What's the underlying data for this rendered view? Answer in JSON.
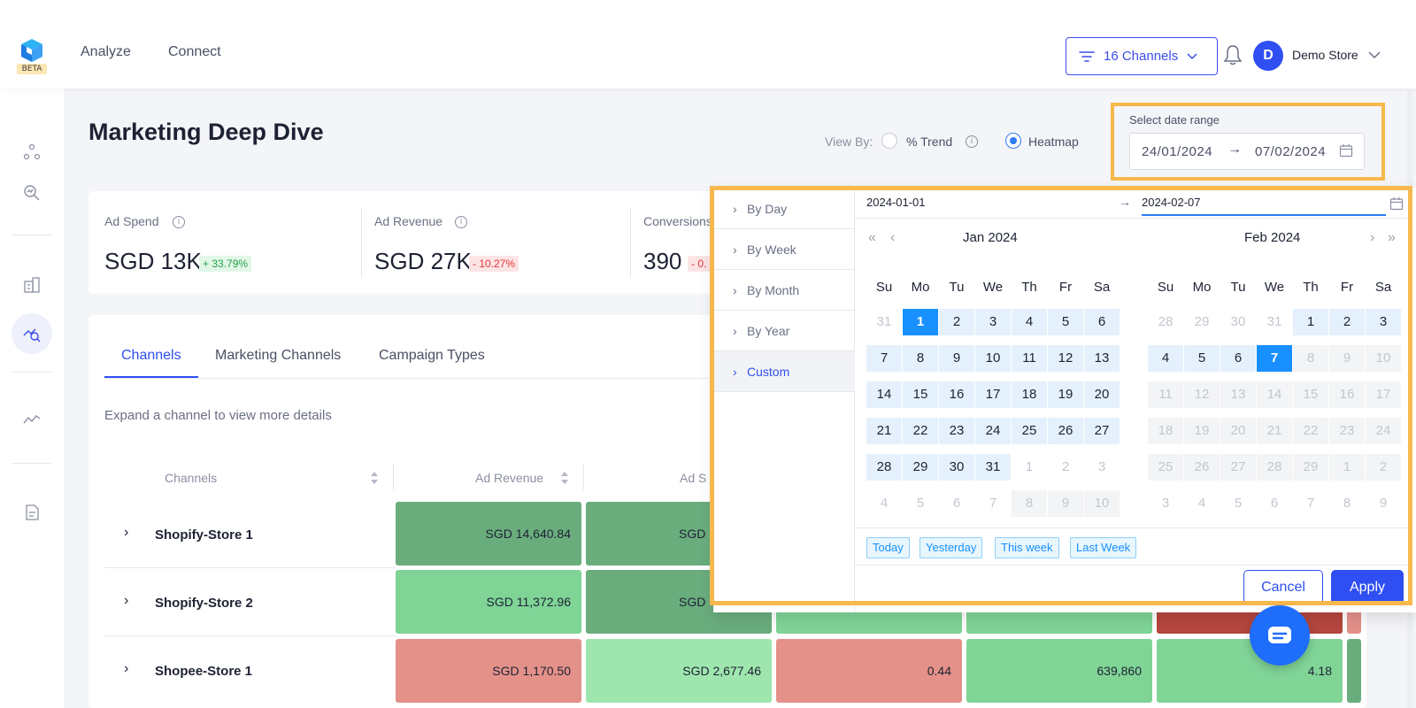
{
  "nav": {
    "logo_badge": "BETA",
    "items": [
      {
        "label": "Analyze"
      },
      {
        "label": "Connect"
      }
    ],
    "channels_filter": "16 Channels",
    "avatar_initial": "D",
    "store_name": "Demo Store"
  },
  "page": {
    "title": "Marketing Deep Dive",
    "view_by_label": "View By:",
    "view_options": [
      {
        "label": "% Trend",
        "selected": false
      },
      {
        "label": "Heatmap",
        "selected": true
      }
    ],
    "date_range": {
      "label": "Select date range",
      "start": "24/01/2024",
      "arrow": "→",
      "end": "07/02/2024"
    }
  },
  "kpis": [
    {
      "label": "Ad Spend",
      "value": "SGD 13K",
      "change": "+ 33.79%",
      "direction": "up"
    },
    {
      "label": "Ad Revenue",
      "value": "SGD 27K",
      "change": "- 10.27%",
      "direction": "down"
    },
    {
      "label": "Conversions",
      "value": "390",
      "change": "- 0.",
      "direction": "down"
    }
  ],
  "table": {
    "tabs": [
      {
        "label": "Channels",
        "active": true
      },
      {
        "label": "Marketing Channels",
        "active": false
      },
      {
        "label": "Campaign Types",
        "active": false
      }
    ],
    "hint": "Expand a channel to view more details",
    "columns": [
      "Channels",
      "Ad Revenue",
      "Ad S"
    ],
    "rows": [
      {
        "name": "Shopify-Store 1",
        "cells": [
          "SGD 14,640.84",
          "SGD"
        ]
      },
      {
        "name": "Shopify-Store 2",
        "cells": [
          "SGD 11,372.96",
          "SGD"
        ]
      },
      {
        "name": "Shopee-Store 1",
        "cells": [
          "SGD 1,170.50",
          "SGD 2,677.46",
          "0.44",
          "639,860",
          "4.18"
        ]
      }
    ],
    "heat_colors": {
      "dark_green": "#6aad7d",
      "mid_green": "#7fd496",
      "light_green": "#9ee6ae",
      "red": "#e4918a",
      "dark_red": "#b5473f"
    }
  },
  "picker": {
    "presets": [
      {
        "label": "By Day",
        "active": false
      },
      {
        "label": "By Week",
        "active": false
      },
      {
        "label": "By Month",
        "active": false
      },
      {
        "label": "By Year",
        "active": false
      },
      {
        "label": "Custom",
        "active": true
      }
    ],
    "start_input": "2024-01-01",
    "end_input": "2024-02-07",
    "arrow": "→",
    "weekdays": [
      "Su",
      "Mo",
      "Tu",
      "We",
      "Th",
      "Fr",
      "Sa"
    ],
    "left_month": {
      "title": "Jan  2024",
      "days": [
        [
          "31",
          "1",
          "2",
          "3",
          "4",
          "5",
          "6"
        ],
        [
          "7",
          "8",
          "9",
          "10",
          "11",
          "12",
          "13"
        ],
        [
          "14",
          "15",
          "16",
          "17",
          "18",
          "19",
          "20"
        ],
        [
          "21",
          "22",
          "23",
          "24",
          "25",
          "26",
          "27"
        ],
        [
          "28",
          "29",
          "30",
          "31",
          "1",
          "2",
          "3"
        ],
        [
          "4",
          "5",
          "6",
          "7",
          "8",
          "9",
          "10"
        ]
      ]
    },
    "right_month": {
      "title": "Feb  2024",
      "days": [
        [
          "28",
          "29",
          "30",
          "31",
          "1",
          "2",
          "3"
        ],
        [
          "4",
          "5",
          "6",
          "7",
          "8",
          "9",
          "10"
        ],
        [
          "11",
          "12",
          "13",
          "14",
          "15",
          "16",
          "17"
        ],
        [
          "18",
          "19",
          "20",
          "21",
          "22",
          "23",
          "24"
        ],
        [
          "25",
          "26",
          "27",
          "28",
          "29",
          "1",
          "2"
        ],
        [
          "3",
          "4",
          "5",
          "6",
          "7",
          "8",
          "9"
        ]
      ]
    },
    "quick_ranges": [
      "Today",
      "Yesterday",
      "This week",
      "Last Week"
    ],
    "cancel": "Cancel",
    "apply": "Apply",
    "colors": {
      "selected": "#1890ff",
      "in_range": "#e4f1fc",
      "highlight_outline": "#f7b84d"
    }
  }
}
